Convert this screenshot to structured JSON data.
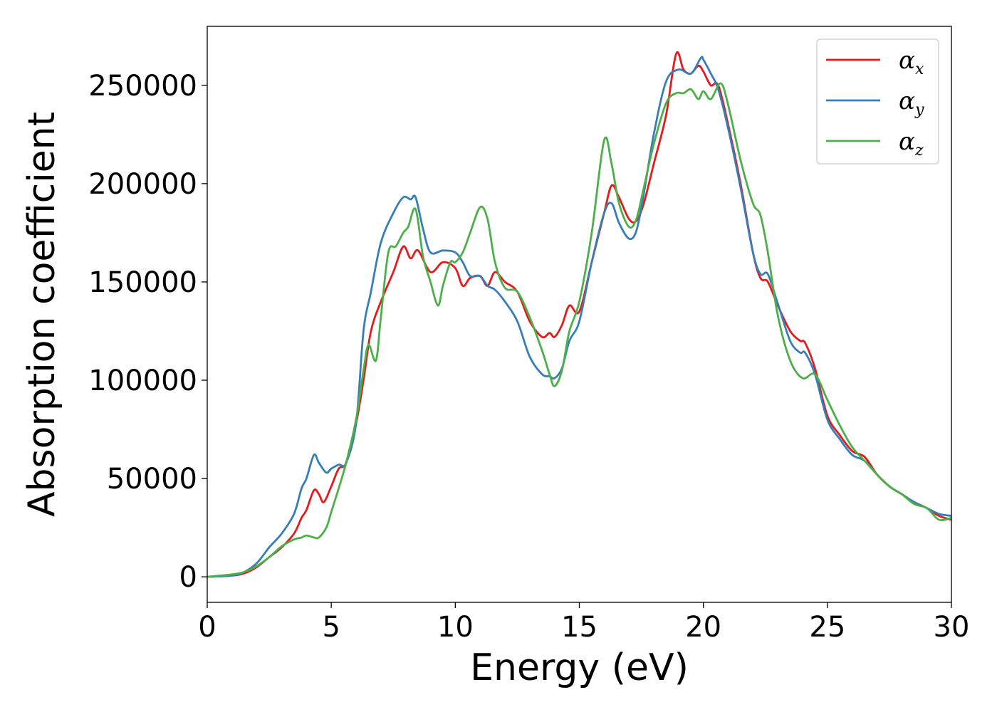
{
  "chart_data": {
    "type": "line",
    "title": "",
    "xlabel": "Energy (eV)",
    "ylabel": "Absorption coefficient",
    "xlim": [
      0,
      30
    ],
    "ylim": [
      -13000,
      280000
    ],
    "xticks": [
      0,
      5,
      10,
      15,
      20,
      25,
      30
    ],
    "yticks": [
      0,
      50000,
      100000,
      150000,
      200000,
      250000
    ],
    "grid": false,
    "legend": "top-right",
    "series": [
      {
        "name": "α",
        "subscript": "x",
        "color": "#e41a1c",
        "x": [
          0,
          1,
          1.5,
          2,
          2.5,
          3,
          3.5,
          3.8,
          4.0,
          4.3,
          4.5,
          4.7,
          5.0,
          5.3,
          5.6,
          6.0,
          6.3,
          6.6,
          7.0,
          7.5,
          7.9,
          8.2,
          8.5,
          9.0,
          9.5,
          10.0,
          10.3,
          10.6,
          11.0,
          11.3,
          11.6,
          12.0,
          12.5,
          13.0,
          13.5,
          13.8,
          14.0,
          14.3,
          14.6,
          15.0,
          15.5,
          16.0,
          16.3,
          16.6,
          17.0,
          17.3,
          17.6,
          18.0,
          18.5,
          18.9,
          19.2,
          19.5,
          19.8,
          20.0,
          20.3,
          20.6,
          21.0,
          21.5,
          22.0,
          22.3,
          22.6,
          23.0,
          23.5,
          23.9,
          24.1,
          24.5,
          25.0,
          25.5,
          26.0,
          26.5,
          27.0,
          27.5,
          28.0,
          28.5,
          29.0,
          29.5,
          30.0
        ],
        "values": [
          0,
          600,
          1800,
          5000,
          10000,
          15000,
          22000,
          30000,
          34000,
          44000,
          42000,
          38000,
          46000,
          55000,
          58000,
          78000,
          100000,
          125000,
          140000,
          155000,
          168000,
          162000,
          166000,
          155000,
          160000,
          157000,
          148000,
          152000,
          153000,
          148000,
          155000,
          150000,
          145000,
          130000,
          122000,
          124000,
          122000,
          128000,
          138000,
          135000,
          160000,
          185000,
          199000,
          193000,
          182000,
          181000,
          190000,
          210000,
          235000,
          266000,
          258000,
          256000,
          260000,
          257000,
          250000,
          250000,
          230000,
          200000,
          165000,
          152000,
          150000,
          138000,
          125000,
          120000,
          119000,
          106000,
          82000,
          72000,
          64000,
          61000,
          52000,
          46000,
          42000,
          38000,
          35000,
          31000,
          29000
        ]
      },
      {
        "name": "α",
        "subscript": "y",
        "color": "#377eb8",
        "x": [
          0,
          1,
          1.5,
          2,
          2.5,
          3,
          3.5,
          3.8,
          4.0,
          4.3,
          4.5,
          4.8,
          5.0,
          5.3,
          5.6,
          6.0,
          6.3,
          6.6,
          7.0,
          7.5,
          7.9,
          8.2,
          8.4,
          8.7,
          9.0,
          9.5,
          10.0,
          10.3,
          10.6,
          11.0,
          11.3,
          11.6,
          12.0,
          12.5,
          13.0,
          13.5,
          13.8,
          14.0,
          14.3,
          14.6,
          15.0,
          15.5,
          16.0,
          16.3,
          16.6,
          17.0,
          17.3,
          17.6,
          18.0,
          18.5,
          19.0,
          19.5,
          19.9,
          20.0,
          20.3,
          20.6,
          21.0,
          21.5,
          22.0,
          22.3,
          22.6,
          23.0,
          23.5,
          23.9,
          24.1,
          24.5,
          25.0,
          25.5,
          26.0,
          26.5,
          27.0,
          27.5,
          28.0,
          28.5,
          29.0,
          29.5,
          30.0
        ],
        "values": [
          0,
          600,
          2500,
          7000,
          15000,
          22000,
          32000,
          45000,
          50000,
          62000,
          58000,
          53000,
          55000,
          57000,
          58000,
          78000,
          125000,
          145000,
          170000,
          185000,
          193000,
          192000,
          193000,
          177000,
          165000,
          166000,
          165000,
          160000,
          153000,
          153000,
          148000,
          146000,
          140000,
          130000,
          112000,
          103000,
          102000,
          101000,
          106000,
          120000,
          130000,
          160000,
          185000,
          190000,
          180000,
          172000,
          176000,
          195000,
          225000,
          252000,
          258000,
          256000,
          264000,
          263000,
          256000,
          248000,
          228000,
          198000,
          165000,
          154000,
          154000,
          139000,
          120000,
          114000,
          114000,
          103000,
          80000,
          70000,
          62000,
          59000,
          52000,
          46000,
          42000,
          38000,
          35000,
          32000,
          31000
        ]
      },
      {
        "name": "α",
        "subscript": "z",
        "color": "#4daf4a",
        "x": [
          0,
          1,
          1.5,
          2,
          2.5,
          3,
          3.5,
          3.8,
          4.0,
          4.3,
          4.5,
          4.8,
          5.0,
          5.3,
          5.6,
          6.0,
          6.3,
          6.5,
          6.8,
          7.0,
          7.3,
          7.6,
          7.9,
          8.1,
          8.4,
          8.7,
          9.0,
          9.3,
          9.5,
          9.8,
          10.0,
          10.3,
          10.6,
          11.0,
          11.3,
          11.6,
          12.0,
          12.5,
          13.0,
          13.5,
          13.8,
          14.0,
          14.3,
          14.6,
          15.0,
          15.5,
          16.0,
          16.3,
          16.6,
          17.0,
          17.3,
          17.6,
          18.0,
          18.5,
          18.9,
          19.2,
          19.5,
          19.8,
          20.0,
          20.3,
          20.7,
          21.0,
          21.5,
          22.0,
          22.3,
          22.6,
          23.0,
          23.5,
          24.0,
          24.5,
          25.0,
          25.5,
          26.0,
          26.5,
          27.0,
          27.5,
          28.0,
          28.5,
          29.0,
          29.5,
          30.0
        ],
        "values": [
          0,
          1200,
          2500,
          5500,
          10000,
          15500,
          19000,
          20000,
          21000,
          20000,
          20000,
          25000,
          33000,
          45000,
          58000,
          80000,
          105000,
          118000,
          110000,
          132000,
          165000,
          168000,
          175000,
          178000,
          187000,
          163000,
          150000,
          138000,
          148000,
          160000,
          160000,
          165000,
          175000,
          188000,
          182000,
          160000,
          147000,
          145000,
          132000,
          115000,
          103000,
          97000,
          105000,
          125000,
          140000,
          175000,
          222000,
          210000,
          190000,
          178000,
          182000,
          198000,
          220000,
          241000,
          246000,
          246000,
          248000,
          243000,
          247000,
          243000,
          251000,
          240000,
          212000,
          190000,
          184000,
          165000,
          133000,
          110000,
          101000,
          103000,
          90000,
          77000,
          66000,
          59000,
          52000,
          46000,
          42000,
          37000,
          35000,
          29000,
          30000
        ]
      }
    ]
  }
}
